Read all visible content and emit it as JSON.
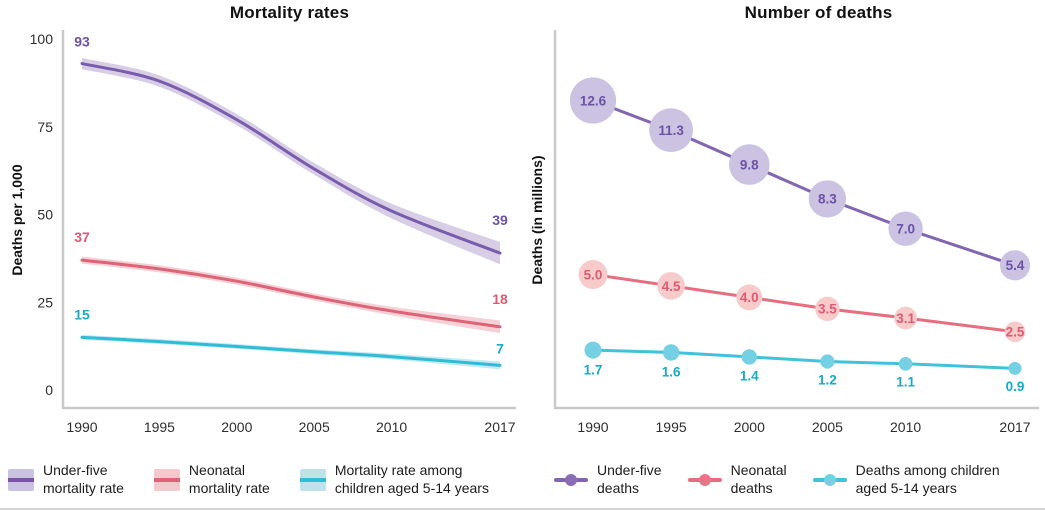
{
  "chart_data": [
    {
      "type": "line",
      "title": "Mortality rates",
      "ylabel": "Deaths per 1,000",
      "xlabel": "",
      "x": [
        1990,
        1995,
        2000,
        2005,
        2010,
        2017
      ],
      "xtick_labels": [
        "1990",
        "1995",
        "2000",
        "2005",
        "2010",
        "2017"
      ],
      "ytick_values": [
        0,
        25,
        50,
        75,
        100
      ],
      "ylim": [
        0,
        100
      ],
      "xlim": [
        1990,
        2017
      ],
      "grid": false,
      "legend_position": "bottom",
      "series": [
        {
          "name": "Under-five mortality rate",
          "values": [
            93,
            88,
            77,
            63,
            51,
            39
          ],
          "band_halfwidth": [
            1.6,
            1.6,
            1.6,
            1.7,
            2.1,
            3.2
          ],
          "first_label": "93",
          "last_label": "39",
          "color": "#7a5cac",
          "band_color": "rgba(122,92,172,0.30)",
          "label_color": "#6b52a4"
        },
        {
          "name": "Neonatal mortality rate",
          "values": [
            37,
            34.5,
            31,
            26.5,
            22.5,
            18
          ],
          "band_halfwidth": [
            1.0,
            1.0,
            1.0,
            1.0,
            1.2,
            1.8
          ],
          "first_label": "37",
          "last_label": "18",
          "color": "#dd6377",
          "band_color": "rgba(221,99,119,0.30)",
          "label_color": "#dc5a74"
        },
        {
          "name": "Mortality rate among children aged 5-14 years",
          "values": [
            15,
            13.8,
            12.4,
            10.9,
            9.5,
            7
          ],
          "band_halfwidth": [
            0.7,
            0.7,
            0.7,
            0.7,
            0.8,
            1.1
          ],
          "first_label": "15",
          "last_label": "7",
          "color": "#30bcd5",
          "band_color": "rgba(48,188,213,0.30)",
          "label_color": "#18aac9"
        }
      ]
    },
    {
      "type": "line-bubble",
      "title": "Number of deaths",
      "ylabel": "Deaths (in millions)",
      "xlabel": "",
      "x": [
        1990,
        1995,
        2000,
        2005,
        2010,
        2017
      ],
      "xtick_labels": [
        "1990",
        "1995",
        "2000",
        "2005",
        "2010",
        "2017"
      ],
      "ytick_values": [],
      "ylim": [
        0,
        15.5
      ],
      "xlim": [
        1990,
        2017
      ],
      "grid": false,
      "legend_position": "bottom",
      "series": [
        {
          "name": "Under-five deaths",
          "values": [
            12.6,
            11.3,
            9.8,
            8.3,
            7.0,
            5.4
          ],
          "point_labels": [
            "12.6",
            "11.3",
            "9.8",
            "8.3",
            "7.0",
            "5.4"
          ],
          "label_placement": "inside",
          "line_color": "#8266b2",
          "fill_color": "#ccc3e3",
          "label_color": "#6b52a4"
        },
        {
          "name": "Neonatal deaths",
          "values": [
            5.0,
            4.5,
            4.0,
            3.5,
            3.1,
            2.5
          ],
          "point_labels": [
            "5.0",
            "4.5",
            "4.0",
            "3.5",
            "3.1",
            "2.5"
          ],
          "label_placement": "inside",
          "line_color": "#e66e80",
          "fill_color": "#f7cbca",
          "label_color": "#e05a74"
        },
        {
          "name": "Deaths among children aged 5-14 years",
          "values": [
            1.7,
            1.6,
            1.4,
            1.2,
            1.1,
            0.9
          ],
          "point_labels": [
            "1.7",
            "1.6",
            "1.4",
            "1.2",
            "1.1",
            "0.9"
          ],
          "label_placement": "below",
          "line_color": "#3fc2da",
          "fill_color": "#74d0e2",
          "label_color": "#18aac9"
        }
      ]
    }
  ],
  "legend": {
    "left": [
      {
        "lines": [
          "Under-five",
          "mortality rate"
        ],
        "band": "#cbc2e1",
        "line": "#7a52a8"
      },
      {
        "lines": [
          "Neonatal",
          "mortality rate"
        ],
        "band": "#f4c9cd",
        "line": "#dd6377"
      },
      {
        "lines": [
          "Mortality rate among",
          "children aged 5-14 years"
        ],
        "band": "#bfe2e9",
        "line": "#30bcd5"
      }
    ],
    "right": [
      {
        "lines": [
          "Under-five",
          "deaths"
        ],
        "line": "#8266b2",
        "dot": "#8a6cb5"
      },
      {
        "lines": [
          "Neonatal",
          "deaths"
        ],
        "line": "#e66e80",
        "dot": "#ec7287"
      },
      {
        "lines": [
          "Deaths among children",
          "aged 5-14 years"
        ],
        "line": "#3fc2da",
        "dot": "#74d0e2"
      }
    ]
  },
  "colors": {
    "axis": "#c9c9c9",
    "tick_text": "#2e2e2e",
    "title_text": "#111111"
  }
}
